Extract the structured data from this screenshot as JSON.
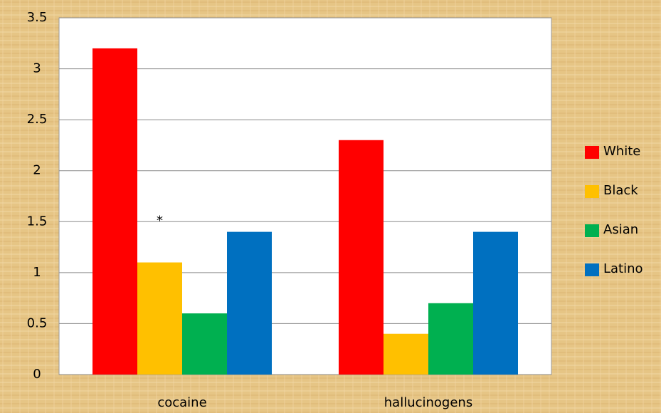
{
  "chart_data": {
    "type": "bar",
    "categories": [
      "cocaine",
      "hallucinogens"
    ],
    "series": [
      {
        "name": "White",
        "color": "#ff0000",
        "values": [
          3.2,
          2.3
        ]
      },
      {
        "name": "Black",
        "color": "#ffc000",
        "values": [
          1.1,
          0.4
        ]
      },
      {
        "name": "Asian",
        "color": "#00b050",
        "values": [
          0.6,
          0.7
        ]
      },
      {
        "name": "Latino",
        "color": "#0070c0",
        "values": [
          1.4,
          1.4
        ]
      }
    ],
    "annotations": [
      "*"
    ],
    "ylim": [
      0,
      3.5
    ],
    "yticks": [
      0,
      0.5,
      1,
      1.5,
      2,
      2.5,
      3,
      3.5
    ],
    "grid": true,
    "legend": "right"
  }
}
